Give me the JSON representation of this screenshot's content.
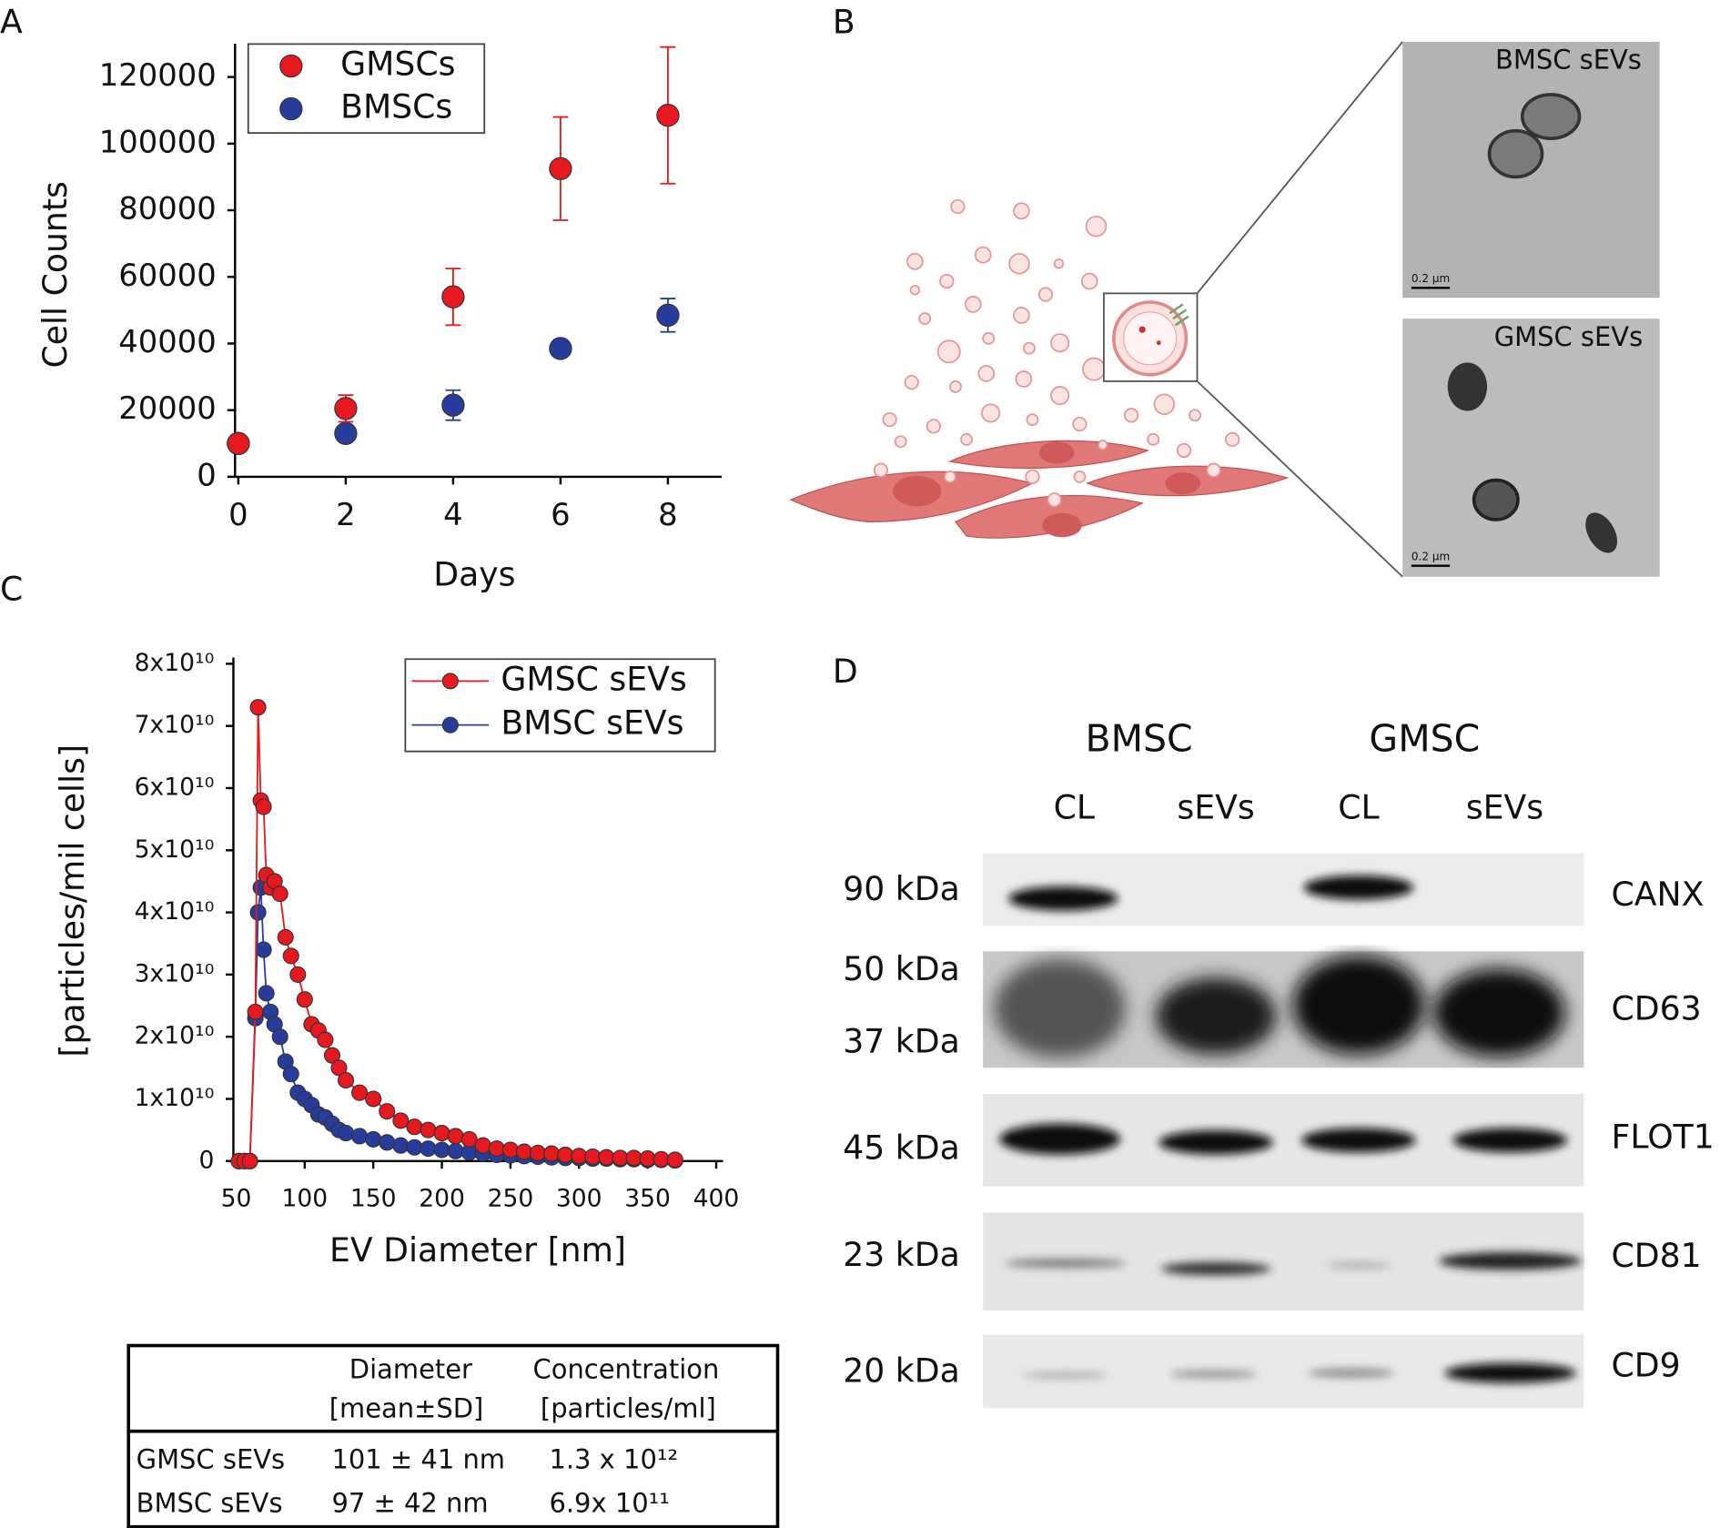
{
  "panel_labels": [
    "A",
    "B",
    "C",
    "D"
  ],
  "chart_data": [
    {
      "type": "scatter",
      "x_label": "Days",
      "y_label": "Cell Counts",
      "x": [
        0,
        2,
        4,
        6,
        8
      ],
      "xlim": [
        0,
        9
      ],
      "xticks": [
        0,
        2,
        4,
        6,
        8
      ],
      "ylim": [
        0,
        130000
      ],
      "yticks": [
        0,
        20000,
        40000,
        60000,
        80000,
        100000,
        120000
      ],
      "legend": "upper left",
      "series": [
        {
          "name": "GMSCs",
          "color": "#e8191e",
          "values": [
            10000,
            20500,
            54000,
            92500,
            108500
          ],
          "errors": [
            1500,
            4000,
            8500,
            15500,
            20500
          ]
        },
        {
          "name": "BMSCs",
          "color": "#263d9e",
          "values": [
            10000,
            13000,
            21500,
            38500,
            48500
          ],
          "errors": [
            1000,
            1500,
            4500,
            2000,
            5000
          ]
        }
      ]
    },
    {
      "type": "line",
      "x_label": "EV Diameter [nm]",
      "y_label": "[particles/mil cells]",
      "x": [
        52,
        56,
        60,
        64,
        66,
        68,
        70,
        72,
        75,
        78,
        82,
        86,
        90,
        95,
        100,
        105,
        110,
        115,
        120,
        125,
        130,
        140,
        150,
        160,
        170,
        180,
        190,
        200,
        210,
        220,
        230,
        240,
        250,
        260,
        270,
        280,
        290,
        300,
        310,
        320,
        330,
        340,
        350,
        360,
        370
      ],
      "xlim": [
        48,
        405
      ],
      "xticks": [
        50,
        100,
        150,
        200,
        250,
        300,
        350,
        400
      ],
      "ylim": [
        0,
        81000000000
      ],
      "yticks": [
        0,
        {
          "value": 10000000000,
          "label": "1x10¹⁰"
        },
        {
          "value": 20000000000,
          "label": "2x10¹⁰"
        },
        {
          "value": 30000000000,
          "label": "3x10¹⁰"
        },
        {
          "value": 40000000000,
          "label": "4x10¹⁰"
        },
        {
          "value": 50000000000,
          "label": "5x10¹⁰"
        },
        {
          "value": 60000000000,
          "label": "6x10¹⁰"
        },
        {
          "value": 70000000000,
          "label": "7x10¹⁰"
        },
        {
          "value": 80000000000,
          "label": "8x10¹⁰"
        }
      ],
      "legend": "upper right",
      "series": [
        {
          "name": "GMSC sEVs",
          "color": "#e8191e",
          "values": [
            0,
            0,
            0,
            24000000000,
            73000000000,
            58000000000,
            57000000000,
            46000000000,
            44000000000,
            45000000000,
            43000000000,
            36000000000,
            33000000000,
            30000000000,
            26000000000,
            22000000000,
            21000000000,
            19500000000,
            17000000000,
            15000000000,
            13000000000,
            11000000000,
            10000000000,
            8000000000,
            6500000000,
            5500000000,
            5000000000,
            4500000000,
            4000000000,
            3500000000,
            2500000000,
            2000000000,
            1800000000,
            1500000000,
            1300000000,
            1200000000,
            1000000000,
            800000000,
            700000000,
            600000000,
            500000000,
            500000000,
            400000000,
            300000000,
            200000000
          ]
        },
        {
          "name": "BMSC sEVs",
          "color": "#263d9e",
          "values": [
            0,
            0,
            0,
            23000000000,
            40000000000,
            44000000000,
            34000000000,
            27000000000,
            24000000000,
            22000000000,
            20000000000,
            16000000000,
            14000000000,
            11000000000,
            10000000000,
            9000000000,
            7500000000,
            7000000000,
            6000000000,
            5000000000,
            4500000000,
            4000000000,
            3500000000,
            3000000000,
            2500000000,
            2200000000,
            2000000000,
            1800000000,
            1600000000,
            1400000000,
            1200000000,
            1000000000,
            900000000,
            800000000,
            700000000,
            600000000,
            500000000,
            500000000,
            400000000,
            400000000,
            300000000,
            300000000,
            200000000,
            200000000,
            100000000
          ]
        }
      ]
    }
  ],
  "tem": {
    "top": "BMSC sEVs",
    "bottom": "GMSC sEVs",
    "scale_bar": "0.2 µm"
  },
  "table": {
    "columns": [
      [
        "Diameter",
        "[mean±SD]"
      ],
      [
        "Concentration",
        "[particles/ml]"
      ]
    ],
    "rows": [
      [
        "GMSC sEVs",
        "101 ± 41 nm",
        "1.3 x 10¹²"
      ],
      [
        "BMSC sEVs",
        "97 ± 42 nm",
        "6.9x 10¹¹"
      ]
    ]
  },
  "blot": {
    "groups": [
      "BMSC",
      "GMSC"
    ],
    "lanes": [
      "CL",
      "sEVs",
      "CL",
      "sEVs"
    ],
    "markers": [
      "90 kDa",
      "50 kDa",
      "37 kDa",
      "45 kDa",
      "23 kDa",
      "20 kDa"
    ],
    "proteins": [
      "CANX",
      "CD63",
      "FLOT1",
      "CD81",
      "CD9"
    ]
  }
}
